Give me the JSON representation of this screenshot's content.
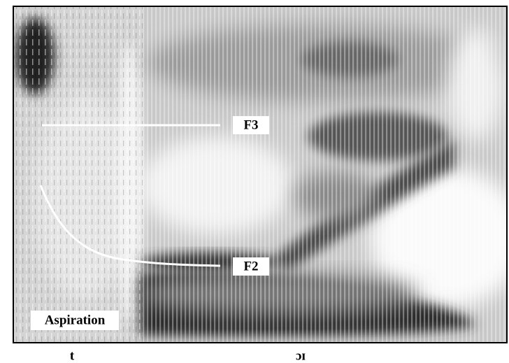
{
  "labels": {
    "f3": "F3",
    "f2": "F2",
    "aspiration": "Aspiration"
  },
  "phonemes": {
    "onset": "t",
    "nucleus": "ɔɪ"
  }
}
